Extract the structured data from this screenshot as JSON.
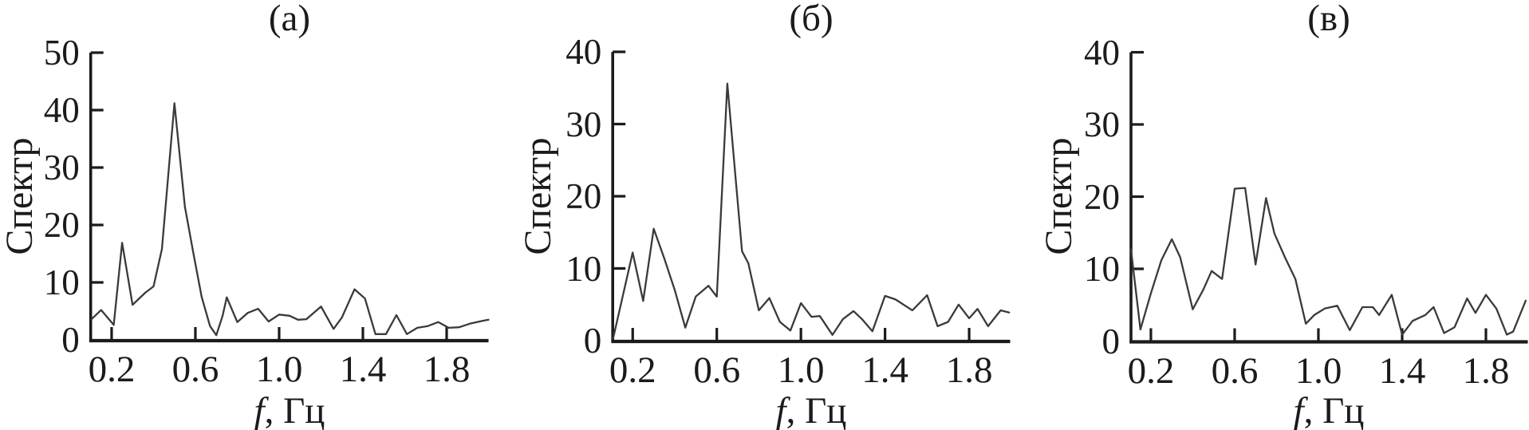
{
  "figure": {
    "background": "#ffffff",
    "line_color": "#3a3a3a",
    "axis_color": "#1b1b1b",
    "text_color": "#1b1b1b"
  },
  "chart_data": [
    {
      "id": "a",
      "type": "line",
      "title": "(а)",
      "ylabel": "Спектр",
      "xlabel_prefix": "f",
      "xlabel_suffix": ", Гц",
      "xlim": [
        0.1,
        2.0
      ],
      "ylim": [
        0,
        50
      ],
      "xticks": [
        0.2,
        0.6,
        1.0,
        1.4,
        1.8
      ],
      "yticks": [
        0,
        10,
        20,
        30,
        40,
        50
      ],
      "grid": false,
      "x": [
        0.104,
        0.15,
        0.21,
        0.25,
        0.3,
        0.36,
        0.4,
        0.44,
        0.5,
        0.55,
        0.59,
        0.63,
        0.67,
        0.7,
        0.73,
        0.75,
        0.8,
        0.85,
        0.9,
        0.95,
        1.0,
        1.05,
        1.09,
        1.13,
        1.2,
        1.26,
        1.3,
        1.36,
        1.41,
        1.46,
        1.51,
        1.56,
        1.61,
        1.66,
        1.71,
        1.76,
        1.81,
        1.86,
        1.91,
        1.97,
        2.0
      ],
      "y": [
        3.6,
        5.2,
        2.6,
        16.9,
        6.1,
        8.2,
        9.3,
        15.8,
        41.2,
        23.2,
        15.2,
        7.5,
        2.4,
        0.8,
        4.2,
        7.4,
        3.1,
        4.7,
        5.4,
        3.2,
        4.4,
        4.2,
        3.5,
        3.6,
        5.8,
        1.9,
        3.9,
        8.8,
        7.2,
        1.0,
        1.0,
        4.3,
        1.0,
        2.1,
        2.4,
        3.1,
        2.1,
        2.2,
        2.8,
        3.3,
        3.5
      ]
    },
    {
      "id": "b",
      "type": "line",
      "title": "(б)",
      "ylabel": "Спектр",
      "xlabel_prefix": "f",
      "xlabel_suffix": ", Гц",
      "xlim": [
        0.105,
        1.995
      ],
      "ylim": [
        0,
        40
      ],
      "xticks": [
        0.2,
        0.6,
        1.0,
        1.4,
        1.8
      ],
      "yticks": [
        0,
        10,
        20,
        30,
        40
      ],
      "grid": false,
      "x": [
        0.107,
        0.2,
        0.25,
        0.3,
        0.35,
        0.4,
        0.45,
        0.5,
        0.56,
        0.6,
        0.65,
        0.72,
        0.75,
        0.8,
        0.85,
        0.9,
        0.95,
        1.0,
        1.05,
        1.09,
        1.15,
        1.2,
        1.25,
        1.29,
        1.34,
        1.4,
        1.45,
        1.53,
        1.6,
        1.65,
        1.7,
        1.75,
        1.8,
        1.84,
        1.89,
        1.95,
        1.99
      ],
      "y": [
        0.3,
        12.2,
        5.5,
        15.5,
        11.4,
        7.0,
        1.8,
        6.1,
        7.6,
        6.1,
        35.6,
        12.4,
        10.7,
        4.2,
        5.9,
        2.6,
        1.4,
        5.2,
        3.3,
        3.4,
        0.8,
        3.0,
        4.1,
        3.0,
        1.3,
        6.2,
        5.7,
        4.2,
        6.3,
        2.0,
        2.6,
        5.0,
        3.1,
        4.4,
        2.0,
        4.2,
        3.9
      ]
    },
    {
      "id": "v",
      "type": "line",
      "title": "(в)",
      "ylabel": "Спектр",
      "xlabel_prefix": "f",
      "xlabel_suffix": ", Гц",
      "xlim": [
        0.105,
        2.0
      ],
      "ylim": [
        0,
        40
      ],
      "xticks": [
        0.2,
        0.6,
        1.0,
        1.4,
        1.8
      ],
      "yticks": [
        0,
        10,
        20,
        30,
        40
      ],
      "grid": false,
      "x": [
        0.105,
        0.15,
        0.2,
        0.25,
        0.3,
        0.34,
        0.4,
        0.45,
        0.49,
        0.54,
        0.6,
        0.65,
        0.7,
        0.75,
        0.79,
        0.84,
        0.89,
        0.94,
        0.98,
        1.03,
        1.09,
        1.15,
        1.21,
        1.26,
        1.29,
        1.35,
        1.4,
        1.45,
        1.51,
        1.55,
        1.6,
        1.65,
        1.71,
        1.75,
        1.8,
        1.85,
        1.9,
        1.93,
        1.99
      ],
      "y": [
        12.7,
        1.6,
        6.6,
        11.2,
        14.1,
        11.6,
        4.4,
        7.1,
        9.7,
        8.6,
        21.1,
        21.2,
        10.6,
        19.8,
        14.9,
        11.6,
        8.6,
        2.4,
        3.6,
        4.5,
        4.9,
        1.5,
        4.7,
        4.7,
        3.6,
        6.4,
        0.9,
        2.8,
        3.6,
        4.7,
        1.1,
        1.9,
        5.9,
        3.9,
        6.4,
        4.5,
        0.9,
        1.3,
        5.6
      ]
    }
  ]
}
